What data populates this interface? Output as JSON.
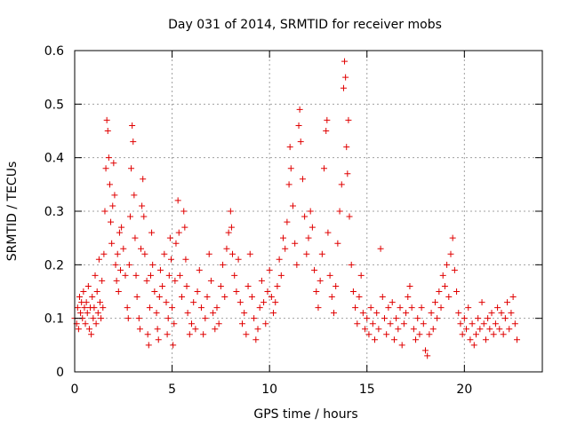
{
  "chart_data": {
    "type": "scatter",
    "title": "Day 031 of 2014, SRMTID for receiver mobs",
    "xlabel": "GPS time / hours",
    "ylabel": "SRMTID / TECUs",
    "xlim": [
      0,
      24
    ],
    "ylim": [
      0,
      0.6
    ],
    "xticks": [
      0,
      5,
      10,
      15,
      20
    ],
    "xtick_labels": [
      "0",
      "5",
      "10",
      "15",
      "20"
    ],
    "yticks": [
      0,
      0.1,
      0.2,
      0.3,
      0.4,
      0.5,
      0.6
    ],
    "ytick_labels": [
      "0",
      "0.1",
      "0.2",
      "0.3",
      "0.4",
      "0.5",
      "0.6"
    ],
    "grid": true,
    "marker": "+",
    "marker_color": "#e00000",
    "series": [
      {
        "name": "SRMTID",
        "points": [
          [
            0.0,
            0.1
          ],
          [
            0.1,
            0.09
          ],
          [
            0.15,
            0.12
          ],
          [
            0.2,
            0.08
          ],
          [
            0.25,
            0.14
          ],
          [
            0.3,
            0.11
          ],
          [
            0.35,
            0.13
          ],
          [
            0.4,
            0.1
          ],
          [
            0.45,
            0.15
          ],
          [
            0.5,
            0.12
          ],
          [
            0.55,
            0.09
          ],
          [
            0.6,
            0.13
          ],
          [
            0.65,
            0.11
          ],
          [
            0.7,
            0.16
          ],
          [
            0.75,
            0.08
          ],
          [
            0.8,
            0.12
          ],
          [
            0.85,
            0.07
          ],
          [
            0.9,
            0.14
          ],
          [
            0.95,
            0.1
          ],
          [
            1.0,
            0.12
          ],
          [
            1.05,
            0.18
          ],
          [
            1.1,
            0.09
          ],
          [
            1.15,
            0.15
          ],
          [
            1.2,
            0.11
          ],
          [
            1.25,
            0.21
          ],
          [
            1.3,
            0.13
          ],
          [
            1.35,
            0.1
          ],
          [
            1.4,
            0.17
          ],
          [
            1.45,
            0.12
          ],
          [
            1.5,
            0.22
          ],
          [
            1.55,
            0.3
          ],
          [
            1.6,
            0.38
          ],
          [
            1.65,
            0.47
          ],
          [
            1.7,
            0.45
          ],
          [
            1.75,
            0.4
          ],
          [
            1.8,
            0.35
          ],
          [
            1.85,
            0.28
          ],
          [
            1.9,
            0.24
          ],
          [
            1.95,
            0.31
          ],
          [
            2.0,
            0.39
          ],
          [
            2.05,
            0.33
          ],
          [
            2.1,
            0.2
          ],
          [
            2.15,
            0.17
          ],
          [
            2.2,
            0.22
          ],
          [
            2.25,
            0.15
          ],
          [
            2.3,
            0.26
          ],
          [
            2.35,
            0.19
          ],
          [
            2.4,
            0.27
          ],
          [
            2.5,
            0.23
          ],
          [
            2.6,
            0.18
          ],
          [
            2.7,
            0.12
          ],
          [
            2.75,
            0.1
          ],
          [
            2.8,
            0.2
          ],
          [
            2.85,
            0.29
          ],
          [
            2.9,
            0.38
          ],
          [
            2.95,
            0.46
          ],
          [
            3.0,
            0.43
          ],
          [
            3.05,
            0.33
          ],
          [
            3.1,
            0.25
          ],
          [
            3.15,
            0.18
          ],
          [
            3.2,
            0.14
          ],
          [
            3.3,
            0.1
          ],
          [
            3.35,
            0.08
          ],
          [
            3.4,
            0.23
          ],
          [
            3.45,
            0.31
          ],
          [
            3.5,
            0.36
          ],
          [
            3.55,
            0.29
          ],
          [
            3.6,
            0.22
          ],
          [
            3.7,
            0.17
          ],
          [
            3.75,
            0.07
          ],
          [
            3.8,
            0.05
          ],
          [
            3.85,
            0.12
          ],
          [
            3.9,
            0.18
          ],
          [
            3.95,
            0.26
          ],
          [
            4.0,
            0.2
          ],
          [
            4.1,
            0.15
          ],
          [
            4.2,
            0.11
          ],
          [
            4.25,
            0.08
          ],
          [
            4.3,
            0.06
          ],
          [
            4.35,
            0.14
          ],
          [
            4.4,
            0.19
          ],
          [
            4.5,
            0.16
          ],
          [
            4.6,
            0.22
          ],
          [
            4.7,
            0.13
          ],
          [
            4.75,
            0.07
          ],
          [
            4.8,
            0.1
          ],
          [
            4.85,
            0.18
          ],
          [
            4.9,
            0.25
          ],
          [
            4.95,
            0.21
          ],
          [
            5.0,
            0.12
          ],
          [
            5.05,
            0.05
          ],
          [
            5.1,
            0.09
          ],
          [
            5.15,
            0.17
          ],
          [
            5.2,
            0.24
          ],
          [
            5.3,
            0.32
          ],
          [
            5.35,
            0.26
          ],
          [
            5.4,
            0.18
          ],
          [
            5.5,
            0.14
          ],
          [
            5.6,
            0.3
          ],
          [
            5.65,
            0.27
          ],
          [
            5.7,
            0.21
          ],
          [
            5.75,
            0.16
          ],
          [
            5.8,
            0.11
          ],
          [
            5.9,
            0.07
          ],
          [
            6.0,
            0.09
          ],
          [
            6.1,
            0.13
          ],
          [
            6.2,
            0.08
          ],
          [
            6.3,
            0.15
          ],
          [
            6.4,
            0.19
          ],
          [
            6.5,
            0.12
          ],
          [
            6.6,
            0.07
          ],
          [
            6.7,
            0.1
          ],
          [
            6.8,
            0.14
          ],
          [
            6.9,
            0.22
          ],
          [
            7.0,
            0.17
          ],
          [
            7.1,
            0.11
          ],
          [
            7.2,
            0.08
          ],
          [
            7.3,
            0.12
          ],
          [
            7.4,
            0.09
          ],
          [
            7.5,
            0.16
          ],
          [
            7.6,
            0.2
          ],
          [
            7.7,
            0.14
          ],
          [
            7.8,
            0.23
          ],
          [
            7.9,
            0.26
          ],
          [
            8.0,
            0.3
          ],
          [
            8.05,
            0.27
          ],
          [
            8.1,
            0.22
          ],
          [
            8.2,
            0.18
          ],
          [
            8.3,
            0.15
          ],
          [
            8.4,
            0.21
          ],
          [
            8.5,
            0.13
          ],
          [
            8.6,
            0.09
          ],
          [
            8.7,
            0.11
          ],
          [
            8.8,
            0.07
          ],
          [
            8.9,
            0.16
          ],
          [
            9.0,
            0.22
          ],
          [
            9.1,
            0.14
          ],
          [
            9.2,
            0.1
          ],
          [
            9.3,
            0.06
          ],
          [
            9.4,
            0.08
          ],
          [
            9.5,
            0.12
          ],
          [
            9.6,
            0.17
          ],
          [
            9.7,
            0.13
          ],
          [
            9.8,
            0.09
          ],
          [
            9.9,
            0.15
          ],
          [
            10.0,
            0.19
          ],
          [
            10.1,
            0.14
          ],
          [
            10.2,
            0.11
          ],
          [
            10.3,
            0.13
          ],
          [
            10.4,
            0.16
          ],
          [
            10.5,
            0.21
          ],
          [
            10.6,
            0.18
          ],
          [
            10.7,
            0.25
          ],
          [
            10.8,
            0.23
          ],
          [
            10.9,
            0.28
          ],
          [
            11.0,
            0.35
          ],
          [
            11.05,
            0.42
          ],
          [
            11.1,
            0.38
          ],
          [
            11.2,
            0.31
          ],
          [
            11.3,
            0.24
          ],
          [
            11.4,
            0.2
          ],
          [
            11.5,
            0.46
          ],
          [
            11.55,
            0.49
          ],
          [
            11.6,
            0.43
          ],
          [
            11.7,
            0.36
          ],
          [
            11.8,
            0.29
          ],
          [
            11.9,
            0.22
          ],
          [
            12.0,
            0.25
          ],
          [
            12.1,
            0.3
          ],
          [
            12.2,
            0.27
          ],
          [
            12.3,
            0.19
          ],
          [
            12.4,
            0.15
          ],
          [
            12.5,
            0.12
          ],
          [
            12.6,
            0.17
          ],
          [
            12.7,
            0.22
          ],
          [
            12.8,
            0.38
          ],
          [
            12.9,
            0.45
          ],
          [
            12.95,
            0.47
          ],
          [
            13.0,
            0.26
          ],
          [
            13.1,
            0.18
          ],
          [
            13.2,
            0.14
          ],
          [
            13.3,
            0.11
          ],
          [
            13.4,
            0.16
          ],
          [
            13.5,
            0.24
          ],
          [
            13.6,
            0.3
          ],
          [
            13.7,
            0.35
          ],
          [
            13.8,
            0.53
          ],
          [
            13.85,
            0.58
          ],
          [
            13.9,
            0.55
          ],
          [
            13.95,
            0.42
          ],
          [
            14.0,
            0.37
          ],
          [
            14.05,
            0.47
          ],
          [
            14.1,
            0.29
          ],
          [
            14.2,
            0.2
          ],
          [
            14.3,
            0.15
          ],
          [
            14.4,
            0.12
          ],
          [
            14.5,
            0.09
          ],
          [
            14.6,
            0.14
          ],
          [
            14.7,
            0.18
          ],
          [
            14.8,
            0.11
          ],
          [
            14.9,
            0.08
          ],
          [
            15.0,
            0.1
          ],
          [
            15.1,
            0.07
          ],
          [
            15.2,
            0.12
          ],
          [
            15.3,
            0.09
          ],
          [
            15.4,
            0.06
          ],
          [
            15.5,
            0.11
          ],
          [
            15.6,
            0.08
          ],
          [
            15.7,
            0.23
          ],
          [
            15.8,
            0.14
          ],
          [
            15.9,
            0.1
          ],
          [
            16.0,
            0.07
          ],
          [
            16.1,
            0.12
          ],
          [
            16.2,
            0.09
          ],
          [
            16.3,
            0.13
          ],
          [
            16.4,
            0.06
          ],
          [
            16.5,
            0.1
          ],
          [
            16.6,
            0.08
          ],
          [
            16.7,
            0.12
          ],
          [
            16.8,
            0.05
          ],
          [
            16.9,
            0.09
          ],
          [
            17.0,
            0.11
          ],
          [
            17.1,
            0.14
          ],
          [
            17.2,
            0.16
          ],
          [
            17.3,
            0.12
          ],
          [
            17.4,
            0.08
          ],
          [
            17.5,
            0.06
          ],
          [
            17.6,
            0.1
          ],
          [
            17.7,
            0.07
          ],
          [
            17.8,
            0.12
          ],
          [
            17.9,
            0.09
          ],
          [
            18.0,
            0.04
          ],
          [
            18.1,
            0.03
          ],
          [
            18.2,
            0.07
          ],
          [
            18.3,
            0.11
          ],
          [
            18.4,
            0.08
          ],
          [
            18.5,
            0.13
          ],
          [
            18.6,
            0.1
          ],
          [
            18.7,
            0.15
          ],
          [
            18.8,
            0.12
          ],
          [
            18.9,
            0.18
          ],
          [
            19.0,
            0.16
          ],
          [
            19.1,
            0.2
          ],
          [
            19.2,
            0.14
          ],
          [
            19.3,
            0.22
          ],
          [
            19.4,
            0.25
          ],
          [
            19.5,
            0.19
          ],
          [
            19.6,
            0.15
          ],
          [
            19.7,
            0.11
          ],
          [
            19.8,
            0.09
          ],
          [
            19.9,
            0.07
          ],
          [
            20.0,
            0.1
          ],
          [
            20.1,
            0.08
          ],
          [
            20.2,
            0.12
          ],
          [
            20.3,
            0.06
          ],
          [
            20.4,
            0.09
          ],
          [
            20.5,
            0.05
          ],
          [
            20.6,
            0.07
          ],
          [
            20.7,
            0.1
          ],
          [
            20.8,
            0.08
          ],
          [
            20.9,
            0.13
          ],
          [
            21.0,
            0.09
          ],
          [
            21.1,
            0.06
          ],
          [
            21.2,
            0.1
          ],
          [
            21.3,
            0.08
          ],
          [
            21.4,
            0.11
          ],
          [
            21.5,
            0.07
          ],
          [
            21.6,
            0.09
          ],
          [
            21.7,
            0.12
          ],
          [
            21.8,
            0.08
          ],
          [
            21.9,
            0.11
          ],
          [
            22.0,
            0.07
          ],
          [
            22.1,
            0.1
          ],
          [
            22.2,
            0.13
          ],
          [
            22.3,
            0.08
          ],
          [
            22.4,
            0.11
          ],
          [
            22.5,
            0.14
          ],
          [
            22.6,
            0.09
          ],
          [
            22.7,
            0.06
          ]
        ]
      }
    ]
  }
}
